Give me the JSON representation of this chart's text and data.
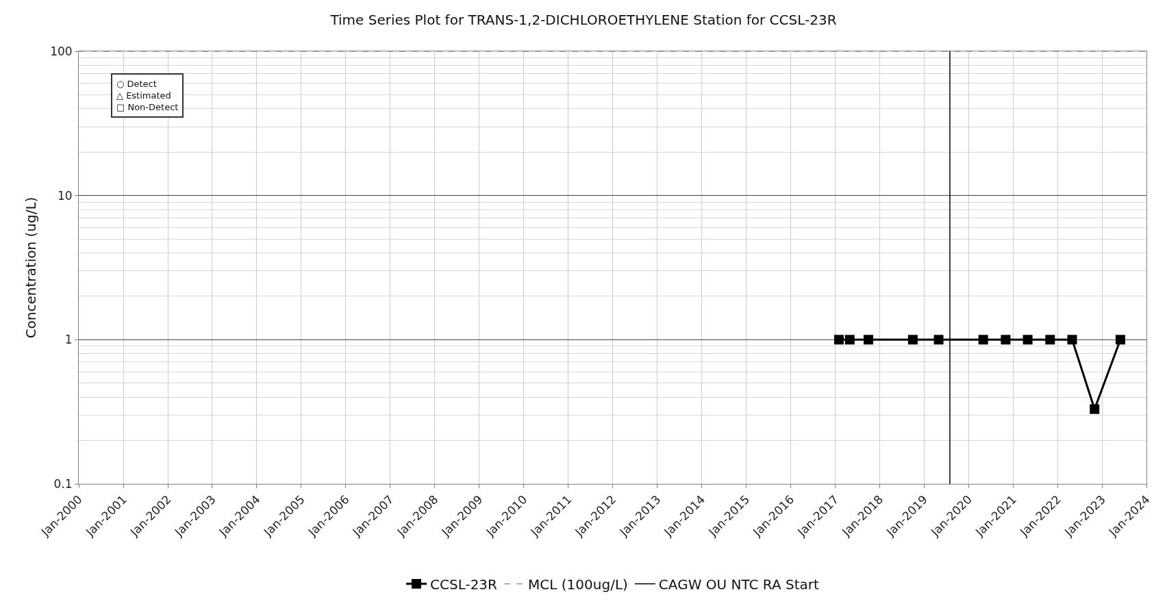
{
  "chart_data": {
    "type": "line",
    "title": "Time Series Plot for TRANS-1,2-DICHLOROETHYLENE Station for CCSL-23R",
    "ylabel": "Concentration (ug/L)",
    "x": [
      "2017-02",
      "2017-05",
      "2017-10",
      "2018-10",
      "2019-05",
      "2020-05",
      "2020-11",
      "2021-05",
      "2021-11",
      "2022-05",
      "2022-11",
      "2023-06"
    ],
    "series": [
      {
        "name": "CCSL-23R",
        "color": "#000000",
        "values": [
          1,
          1,
          1,
          1,
          1,
          1,
          1,
          1,
          1,
          1,
          0.33,
          1
        ]
      }
    ],
    "marker": "square",
    "line_style": "solid",
    "log": "y",
    "grid": true,
    "legend": "bottom",
    "ylim": [
      0.1,
      100
    ],
    "yticks": [
      0.1,
      1,
      10,
      100
    ],
    "xlim": [
      "2000-01",
      "2024-01"
    ],
    "xticks": [
      {
        "value": "2000-01",
        "label": "Jan-2000"
      },
      {
        "value": "2001-01",
        "label": "Jan-2001"
      },
      {
        "value": "2002-01",
        "label": "Jan-2002"
      },
      {
        "value": "2003-01",
        "label": "Jan-2003"
      },
      {
        "value": "2004-01",
        "label": "Jan-2004"
      },
      {
        "value": "2005-01",
        "label": "Jan-2005"
      },
      {
        "value": "2006-01",
        "label": "Jan-2006"
      },
      {
        "value": "2007-01",
        "label": "Jan-2007"
      },
      {
        "value": "2008-01",
        "label": "Jan-2008"
      },
      {
        "value": "2009-01",
        "label": "Jan-2009"
      },
      {
        "value": "2010-01",
        "label": "Jan-2010"
      },
      {
        "value": "2011-01",
        "label": "Jan-2011"
      },
      {
        "value": "2012-01",
        "label": "Jan-2012"
      },
      {
        "value": "2013-01",
        "label": "Jan-2013"
      },
      {
        "value": "2014-01",
        "label": "Jan-2014"
      },
      {
        "value": "2015-01",
        "label": "Jan-2015"
      },
      {
        "value": "2016-01",
        "label": "Jan-2016"
      },
      {
        "value": "2017-01",
        "label": "Jan-2017"
      },
      {
        "value": "2018-01",
        "label": "Jan-2018"
      },
      {
        "value": "2019-01",
        "label": "Jan-2019"
      },
      {
        "value": "2020-01",
        "label": "Jan-2020"
      },
      {
        "value": "2021-01",
        "label": "Jan-2021"
      },
      {
        "value": "2022-01",
        "label": "Jan-2022"
      },
      {
        "value": "2023-01",
        "label": "Jan-2023"
      },
      {
        "value": "2024-01",
        "label": "Jan-2024"
      }
    ],
    "ref_lines": [
      {
        "axis": "y",
        "value": 100,
        "label": "MCL (100ug/L)",
        "color": "#999999",
        "line_style": "dashed"
      },
      {
        "axis": "x",
        "value": "2019-08",
        "label": "CAGW OU NTC RA Start",
        "color": "#000000",
        "line_style": "solid"
      }
    ],
    "annotations": [
      "○ Detect",
      "△ Estimated",
      "□ Non-Detect"
    ]
  }
}
